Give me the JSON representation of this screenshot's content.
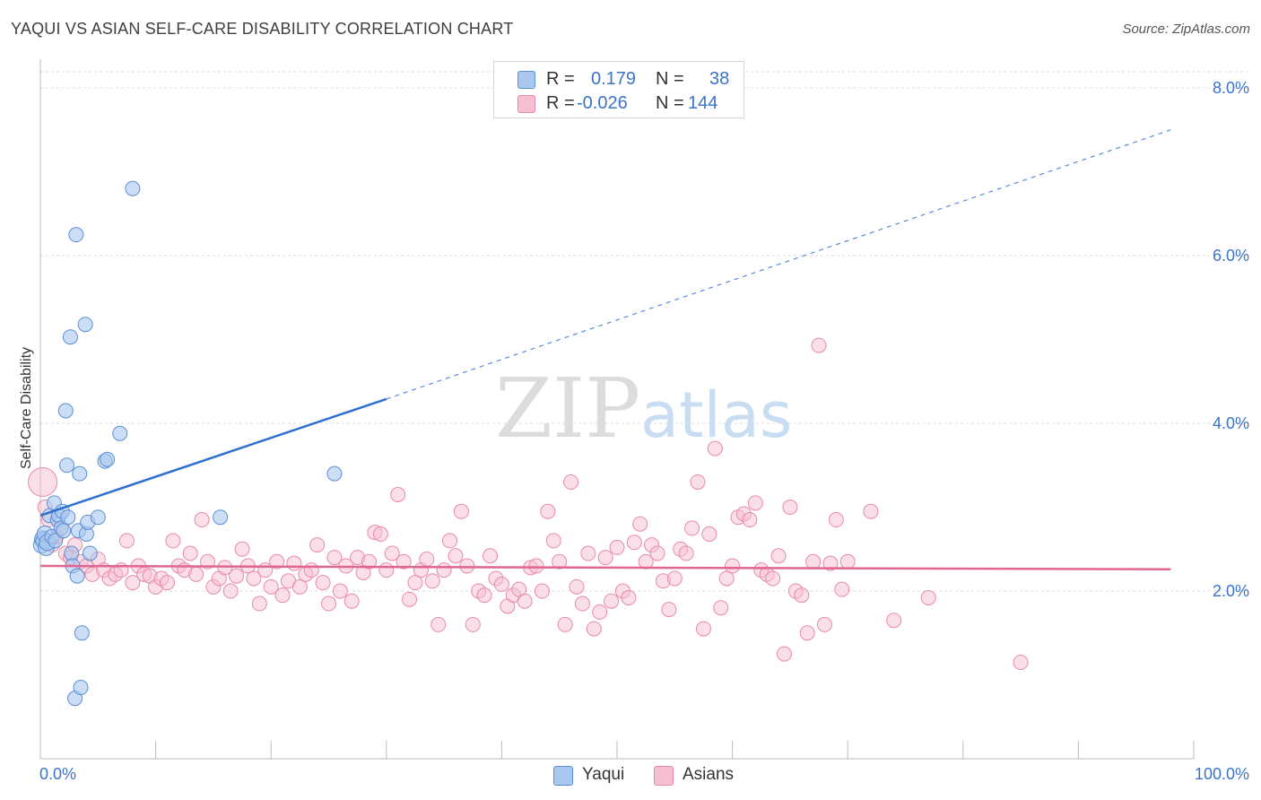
{
  "header": {
    "title": "YAQUI VS ASIAN SELF-CARE DISABILITY CORRELATION CHART",
    "source": "Source: ZipAtlas.com"
  },
  "watermark": {
    "zip": "ZIP",
    "atlas": "atlas"
  },
  "legend": {
    "rows": [
      {
        "r_label": "R =",
        "r_value": "0.179",
        "n_label": "N =",
        "n_value": "38"
      },
      {
        "r_label": "R =",
        "r_value": "-0.026",
        "n_label": "N =",
        "n_value": "144"
      }
    ]
  },
  "chart_data": {
    "type": "scatter",
    "title": "YAQUI VS ASIAN SELF-CARE DISABILITY CORRELATION CHART",
    "xlabel": "",
    "ylabel": "Self-Care Disability",
    "xlim": [
      0,
      100
    ],
    "ylim": [
      0,
      8.3
    ],
    "x_tick_labels": [
      "0.0%",
      "100.0%"
    ],
    "y_ticks": [
      2.0,
      4.0,
      6.0,
      8.0
    ],
    "y_tick_labels": [
      "2.0%",
      "4.0%",
      "6.0%",
      "8.0%"
    ],
    "grid": true,
    "legend_position": "top-center",
    "colors": {
      "yaqui_fill": "#aac8ef",
      "yaqui_stroke": "#5a8fd6",
      "yaqui_line": "#2f6fcf",
      "asian_fill": "#f7c0d2",
      "asian_stroke": "#e889aa",
      "asian_line": "#e06690",
      "value_text": "#3a73c8",
      "grid": "#dcdcdc"
    },
    "series": [
      {
        "name": "Yaqui",
        "trend": {
          "x0": 0,
          "y0": 2.9,
          "x1": 30,
          "y1": 4.29,
          "dash_to_x": 98,
          "dash_to_y": 7.5
        },
        "points": [
          [
            0.1,
            2.55
          ],
          [
            0.2,
            2.62
          ],
          [
            0.3,
            2.6
          ],
          [
            0.4,
            2.68
          ],
          [
            0.5,
            2.52
          ],
          [
            0.6,
            2.58
          ],
          [
            0.8,
            2.9
          ],
          [
            1.0,
            2.65
          ],
          [
            1.2,
            3.05
          ],
          [
            1.3,
            2.6
          ],
          [
            1.5,
            2.85
          ],
          [
            1.6,
            2.9
          ],
          [
            1.8,
            2.75
          ],
          [
            1.9,
            2.95
          ],
          [
            2.0,
            2.72
          ],
          [
            2.2,
            4.15
          ],
          [
            2.3,
            3.5
          ],
          [
            2.4,
            2.88
          ],
          [
            2.6,
            5.03
          ],
          [
            2.7,
            2.45
          ],
          [
            2.8,
            2.3
          ],
          [
            3.0,
            0.72
          ],
          [
            3.1,
            6.25
          ],
          [
            3.2,
            2.18
          ],
          [
            3.3,
            2.72
          ],
          [
            3.4,
            3.4
          ],
          [
            3.5,
            0.85
          ],
          [
            3.6,
            1.5
          ],
          [
            3.9,
            5.18
          ],
          [
            4.0,
            2.68
          ],
          [
            4.1,
            2.82
          ],
          [
            4.3,
            2.45
          ],
          [
            5.0,
            2.88
          ],
          [
            5.6,
            3.55
          ],
          [
            5.8,
            3.57
          ],
          [
            6.9,
            3.88
          ],
          [
            8.0,
            6.8
          ],
          [
            15.6,
            2.88
          ],
          [
            25.5,
            3.4
          ]
        ]
      },
      {
        "name": "Asians",
        "trend": {
          "x0": 0,
          "y0": 2.3,
          "x1": 98,
          "y1": 2.26
        },
        "points": [
          [
            0.2,
            3.3
          ],
          [
            0.4,
            3.0
          ],
          [
            0.7,
            2.85
          ],
          [
            1.0,
            2.55
          ],
          [
            1.4,
            2.65
          ],
          [
            1.8,
            2.75
          ],
          [
            2.2,
            2.45
          ],
          [
            2.6,
            2.4
          ],
          [
            3.0,
            2.55
          ],
          [
            3.5,
            2.35
          ],
          [
            4.0,
            2.3
          ],
          [
            4.5,
            2.2
          ],
          [
            5.0,
            2.38
          ],
          [
            5.5,
            2.25
          ],
          [
            6.0,
            2.15
          ],
          [
            6.5,
            2.2
          ],
          [
            7.0,
            2.25
          ],
          [
            7.5,
            2.6
          ],
          [
            8.0,
            2.1
          ],
          [
            8.5,
            2.3
          ],
          [
            9.0,
            2.2
          ],
          [
            9.5,
            2.18
          ],
          [
            10.0,
            2.05
          ],
          [
            10.5,
            2.15
          ],
          [
            11.0,
            2.1
          ],
          [
            11.5,
            2.6
          ],
          [
            12.0,
            2.3
          ],
          [
            12.5,
            2.25
          ],
          [
            13.0,
            2.45
          ],
          [
            13.5,
            2.2
          ],
          [
            14.0,
            2.85
          ],
          [
            14.5,
            2.35
          ],
          [
            15.0,
            2.05
          ],
          [
            15.5,
            2.15
          ],
          [
            16.0,
            2.28
          ],
          [
            16.5,
            2.0
          ],
          [
            17.0,
            2.18
          ],
          [
            17.5,
            2.5
          ],
          [
            18.0,
            2.3
          ],
          [
            18.5,
            2.15
          ],
          [
            19.0,
            1.85
          ],
          [
            19.5,
            2.25
          ],
          [
            20.0,
            2.05
          ],
          [
            20.5,
            2.35
          ],
          [
            21.0,
            1.95
          ],
          [
            21.5,
            2.12
          ],
          [
            22.0,
            2.33
          ],
          [
            22.5,
            2.05
          ],
          [
            23.0,
            2.2
          ],
          [
            23.5,
            2.25
          ],
          [
            24.0,
            2.55
          ],
          [
            24.5,
            2.1
          ],
          [
            25.0,
            1.85
          ],
          [
            25.5,
            2.4
          ],
          [
            26.0,
            2.0
          ],
          [
            26.5,
            2.3
          ],
          [
            27.0,
            1.88
          ],
          [
            27.5,
            2.4
          ],
          [
            28.0,
            2.22
          ],
          [
            28.5,
            2.35
          ],
          [
            29.0,
            2.7
          ],
          [
            29.5,
            2.68
          ],
          [
            30.0,
            2.25
          ],
          [
            30.5,
            2.45
          ],
          [
            31.0,
            3.15
          ],
          [
            31.5,
            2.35
          ],
          [
            32.0,
            1.9
          ],
          [
            32.5,
            2.1
          ],
          [
            33.0,
            2.25
          ],
          [
            33.5,
            2.38
          ],
          [
            34.0,
            2.12
          ],
          [
            34.5,
            1.6
          ],
          [
            35.0,
            2.25
          ],
          [
            35.5,
            2.6
          ],
          [
            36.0,
            2.42
          ],
          [
            36.5,
            2.95
          ],
          [
            37.0,
            2.3
          ],
          [
            37.5,
            1.6
          ],
          [
            38.0,
            2.0
          ],
          [
            38.5,
            1.95
          ],
          [
            39.0,
            2.42
          ],
          [
            39.5,
            2.15
          ],
          [
            40.0,
            2.08
          ],
          [
            40.5,
            1.82
          ],
          [
            41.0,
            1.95
          ],
          [
            41.5,
            2.02
          ],
          [
            42.0,
            1.88
          ],
          [
            42.5,
            2.28
          ],
          [
            43.0,
            2.3
          ],
          [
            43.5,
            2.0
          ],
          [
            44.0,
            2.95
          ],
          [
            44.5,
            2.6
          ],
          [
            45.0,
            2.35
          ],
          [
            45.5,
            1.6
          ],
          [
            46.0,
            3.3
          ],
          [
            46.5,
            2.05
          ],
          [
            47.0,
            1.85
          ],
          [
            47.5,
            2.45
          ],
          [
            48.0,
            1.55
          ],
          [
            48.5,
            1.75
          ],
          [
            49.0,
            2.4
          ],
          [
            49.5,
            1.88
          ],
          [
            50.0,
            2.52
          ],
          [
            50.5,
            2.0
          ],
          [
            51.0,
            1.92
          ],
          [
            51.5,
            2.58
          ],
          [
            52.0,
            2.8
          ],
          [
            52.5,
            2.35
          ],
          [
            53.0,
            2.55
          ],
          [
            53.5,
            2.45
          ],
          [
            54.0,
            2.12
          ],
          [
            54.5,
            1.78
          ],
          [
            55.0,
            2.15
          ],
          [
            55.5,
            2.5
          ],
          [
            56.0,
            2.45
          ],
          [
            56.5,
            2.75
          ],
          [
            57.0,
            3.3
          ],
          [
            57.5,
            1.55
          ],
          [
            58.0,
            2.68
          ],
          [
            58.5,
            3.7
          ],
          [
            59.0,
            1.8
          ],
          [
            59.5,
            2.15
          ],
          [
            60.0,
            2.3
          ],
          [
            60.5,
            2.88
          ],
          [
            61.0,
            2.92
          ],
          [
            61.5,
            2.85
          ],
          [
            62.0,
            3.05
          ],
          [
            62.5,
            2.25
          ],
          [
            63.0,
            2.2
          ],
          [
            63.5,
            2.15
          ],
          [
            64.0,
            2.42
          ],
          [
            64.5,
            1.25
          ],
          [
            65.0,
            3.0
          ],
          [
            65.5,
            2.0
          ],
          [
            66.0,
            1.95
          ],
          [
            66.5,
            1.5
          ],
          [
            67.0,
            2.35
          ],
          [
            67.5,
            4.93
          ],
          [
            68.0,
            1.6
          ],
          [
            68.5,
            2.33
          ],
          [
            69.0,
            2.85
          ],
          [
            69.5,
            2.02
          ],
          [
            70.0,
            2.35
          ],
          [
            72.0,
            2.95
          ],
          [
            74.0,
            1.65
          ],
          [
            77.0,
            1.92
          ],
          [
            85.0,
            1.15
          ]
        ]
      }
    ]
  },
  "bottom_legend": {
    "items": [
      "Yaqui",
      "Asians"
    ]
  }
}
